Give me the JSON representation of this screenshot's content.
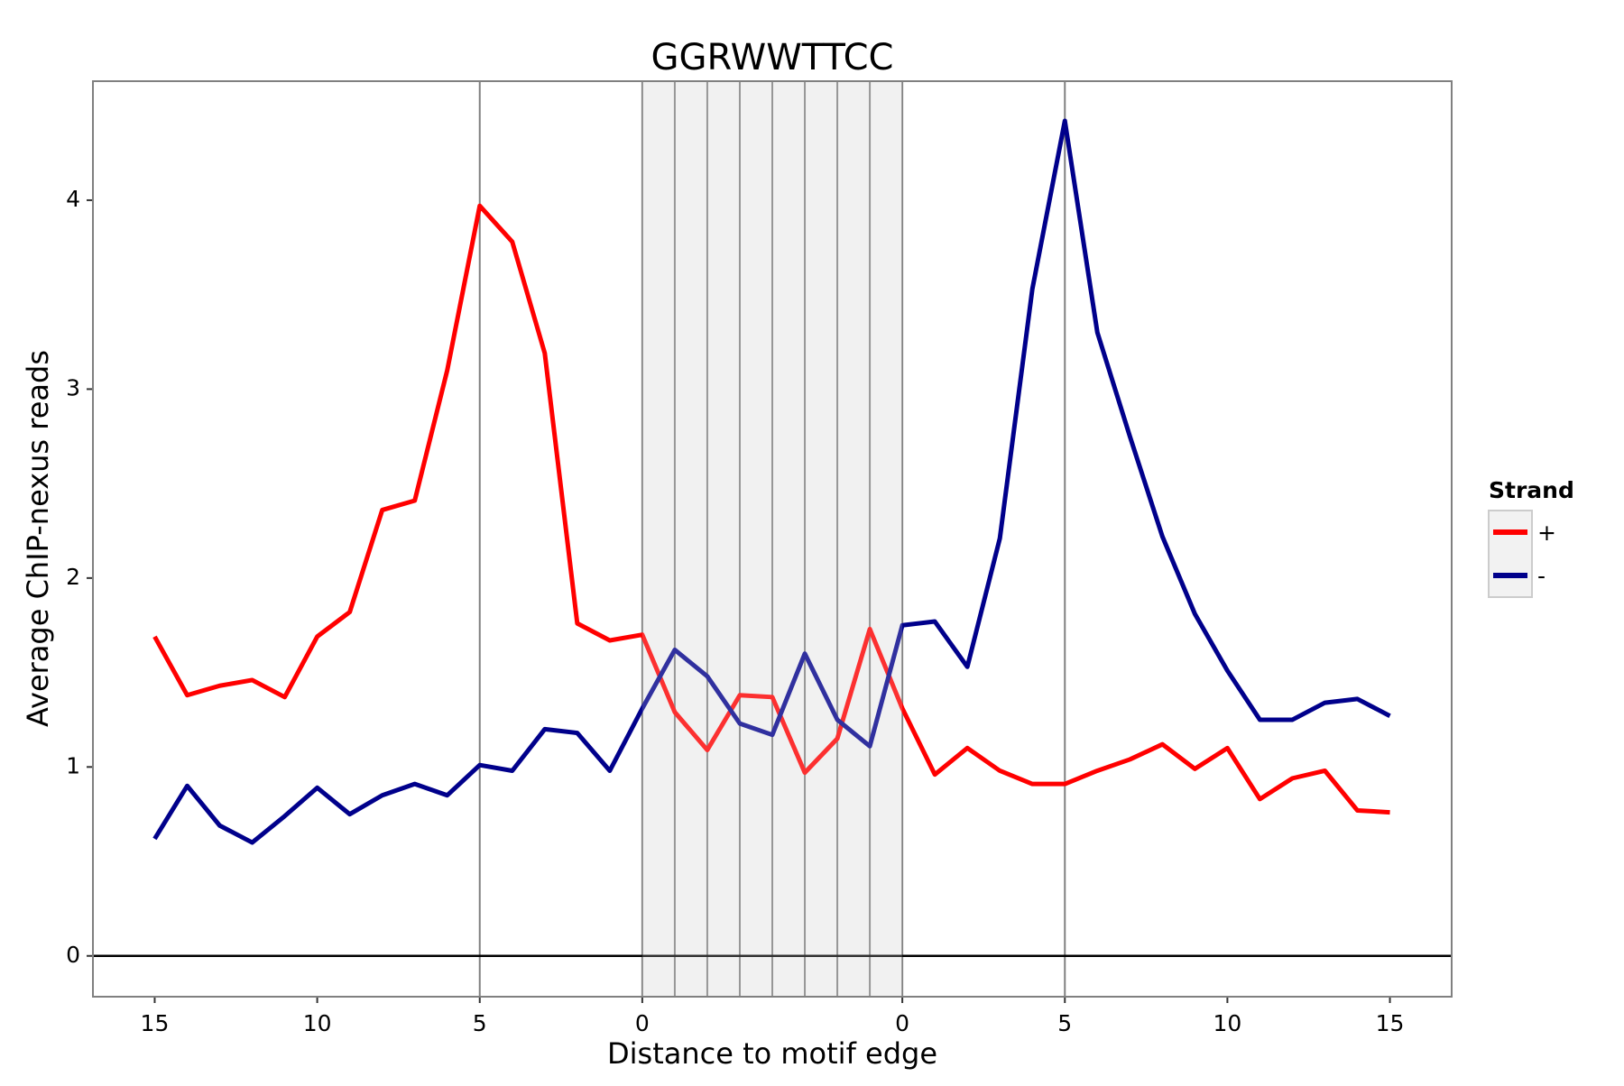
{
  "chart_data": {
    "type": "line",
    "title": "GGRWWTTCC",
    "x_label": "Distance to motif edge",
    "y_label": "Average ChIP-nexus reads",
    "x": [
      0,
      1,
      2,
      3,
      4,
      5,
      6,
      7,
      8,
      9,
      10,
      11,
      12,
      13,
      14,
      15,
      16,
      17,
      18,
      19,
      20,
      21,
      22,
      23,
      24,
      25,
      26,
      27,
      28,
      29,
      30,
      31,
      32,
      33,
      34,
      35,
      36,
      37,
      38
    ],
    "series": [
      {
        "name": "+",
        "color": "#ff0000",
        "values": [
          1.69,
          1.38,
          1.43,
          1.46,
          1.37,
          1.69,
          1.82,
          2.36,
          2.41,
          3.1,
          3.97,
          3.78,
          3.19,
          1.76,
          1.67,
          1.7,
          1.29,
          1.09,
          1.38,
          1.37,
          0.97,
          1.15,
          1.73,
          1.31,
          0.96,
          1.1,
          0.98,
          0.91,
          0.91,
          0.98,
          1.04,
          1.12,
          0.99,
          1.1,
          0.83,
          0.94,
          0.98,
          0.77,
          0.76
        ]
      },
      {
        "name": "-",
        "color": "#00008b",
        "values": [
          0.62,
          0.9,
          0.69,
          0.6,
          0.74,
          0.89,
          0.75,
          0.85,
          0.91,
          0.85,
          1.01,
          0.98,
          1.2,
          1.18,
          0.98,
          1.31,
          1.62,
          1.48,
          1.23,
          1.17,
          1.6,
          1.25,
          1.11,
          1.75,
          1.77,
          1.53,
          2.21,
          3.53,
          4.42,
          3.3,
          2.75,
          2.22,
          1.81,
          1.51,
          1.25,
          1.25,
          1.34,
          1.36,
          1.27
        ]
      }
    ],
    "xlim": [
      -1.9,
      39.9
    ],
    "ylim": [
      -0.216,
      4.63
    ],
    "xticks": [
      {
        "value": 0,
        "label": "15"
      },
      {
        "value": 5,
        "label": "10"
      },
      {
        "value": 10,
        "label": "5"
      },
      {
        "value": 15,
        "label": "0"
      },
      {
        "value": 23,
        "label": "0"
      },
      {
        "value": 28,
        "label": "5"
      },
      {
        "value": 33,
        "label": "10"
      },
      {
        "value": 38,
        "label": "15"
      }
    ],
    "yticks": [
      0,
      1,
      2,
      3,
      4
    ],
    "motif_region": [
      15,
      23
    ],
    "vlines": [
      10,
      15,
      16,
      17,
      18,
      19,
      20,
      21,
      22,
      23,
      28
    ],
    "hline": 0,
    "legend_title": "Strand",
    "legend_position": "right"
  }
}
